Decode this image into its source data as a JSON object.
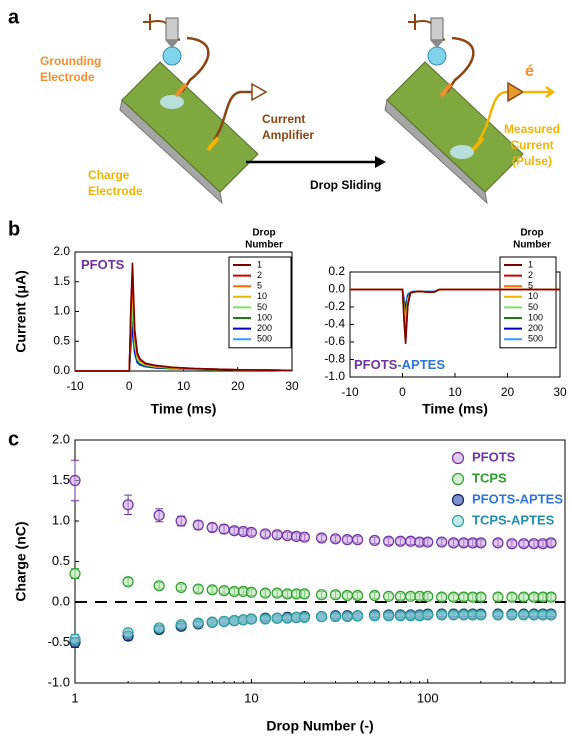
{
  "figure": {
    "panel_labels": [
      "a",
      "b",
      "c"
    ],
    "diagram": {
      "grounding": [
        "Grounding",
        "Electrode"
      ],
      "amplifier": [
        "Current",
        "Amplifier"
      ],
      "charge": [
        "Charge",
        "Electrode"
      ],
      "arrow": "Drop Sliding",
      "electron": "é",
      "measured": [
        "Measured",
        "Current",
        "(Pulse)"
      ]
    }
  },
  "chart_data": [
    {
      "type": "line",
      "title_parts": [
        {
          "text": "PFOTS",
          "color": "#7030a0"
        }
      ],
      "x_label": "Time (ms)",
      "y_label": "Current (μA)",
      "legend_title": [
        "Drop",
        "Number"
      ],
      "x": [
        -10,
        0,
        0.3,
        0.6,
        1,
        1.5,
        2,
        3,
        5,
        8,
        12,
        20,
        30
      ],
      "xlim": [
        -10,
        30
      ],
      "xticks": [
        -10,
        0,
        10,
        20,
        30
      ],
      "ylim": [
        0,
        2
      ],
      "yticks": [
        {
          "value": 0,
          "label": "0.0"
        },
        0.5,
        {
          "value": 1,
          "label": "1.0"
        },
        1.5,
        {
          "value": 2,
          "label": "2.0"
        }
      ],
      "series": [
        {
          "name": "1",
          "color": "#7b0000",
          "values": [
            0,
            0,
            1.1,
            1.82,
            0.7,
            0.3,
            0.2,
            0.13,
            0.09,
            0.06,
            0.04,
            0.02,
            0.01
          ]
        },
        {
          "name": "2",
          "color": "#d40000",
          "values": [
            0,
            0,
            1.0,
            1.7,
            0.65,
            0.28,
            0.19,
            0.12,
            0.09,
            0.06,
            0.04,
            0.02,
            0.01
          ]
        },
        {
          "name": "5",
          "color": "#ff6a00",
          "values": [
            0,
            0,
            0.95,
            1.55,
            0.6,
            0.26,
            0.18,
            0.12,
            0.08,
            0.06,
            0.04,
            0.02,
            0.01
          ]
        },
        {
          "name": "10",
          "color": "#e8b800",
          "values": [
            0,
            0,
            0.85,
            1.4,
            0.55,
            0.24,
            0.17,
            0.11,
            0.08,
            0.05,
            0.03,
            0.02,
            0.01
          ]
        },
        {
          "name": "50",
          "color": "#80e060",
          "values": [
            0,
            0,
            0.7,
            1.1,
            0.45,
            0.2,
            0.14,
            0.1,
            0.07,
            0.05,
            0.03,
            0.02,
            0.01
          ]
        },
        {
          "name": "100",
          "color": "#1a7a1a",
          "values": [
            0,
            0,
            0.6,
            0.95,
            0.4,
            0.18,
            0.13,
            0.09,
            0.06,
            0.04,
            0.03,
            0.02,
            0.01
          ]
        },
        {
          "name": "200",
          "color": "#0000c0",
          "values": [
            0,
            0,
            0.5,
            0.75,
            0.33,
            0.15,
            0.11,
            0.08,
            0.05,
            0.04,
            0.03,
            0.02,
            0.01
          ]
        },
        {
          "name": "500",
          "color": "#3399ff",
          "values": [
            0,
            0,
            0.4,
            0.62,
            0.28,
            0.13,
            0.1,
            0.07,
            0.05,
            0.04,
            0.03,
            0.02,
            0.01
          ]
        }
      ]
    },
    {
      "type": "line",
      "title_parts": [
        {
          "text": "PFOTS",
          "color": "#7030a0"
        },
        {
          "text": "-APTES",
          "color": "#2e75d6"
        }
      ],
      "x_label": "Time (ms)",
      "legend_title": [
        "Drop",
        "Number"
      ],
      "x": [
        -10,
        0,
        0.3,
        0.6,
        1,
        1.5,
        2,
        3,
        5,
        6,
        7,
        12,
        30
      ],
      "xlim": [
        -10,
        30
      ],
      "xticks": [
        -10,
        0,
        10,
        20,
        30
      ],
      "ylim": [
        -1,
        0.2
      ],
      "yticks": [
        0.2,
        {
          "value": 0,
          "label": "0.0"
        },
        -0.2,
        -0.4,
        -0.6,
        -0.8,
        {
          "value": -1,
          "label": "-1.0"
        }
      ],
      "series": [
        {
          "name": "1",
          "color": "#7b0000",
          "values": [
            0,
            0,
            -0.37,
            -0.62,
            -0.19,
            -0.04,
            -0.03,
            -0.02,
            -0.03,
            -0.03,
            0,
            0,
            0
          ]
        },
        {
          "name": "2",
          "color": "#d40000",
          "values": [
            0,
            0,
            -0.35,
            -0.58,
            -0.17,
            -0.04,
            -0.03,
            -0.02,
            -0.03,
            -0.03,
            0,
            0,
            0
          ]
        },
        {
          "name": "5",
          "color": "#ff6a00",
          "values": [
            0,
            0,
            -0.3,
            -0.5,
            -0.15,
            -0.04,
            -0.03,
            -0.02,
            -0.03,
            -0.03,
            0,
            0,
            0
          ]
        },
        {
          "name": "10",
          "color": "#e8b800",
          "values": [
            0,
            0,
            -0.27,
            -0.45,
            -0.14,
            -0.04,
            -0.03,
            -0.02,
            -0.03,
            -0.03,
            0,
            0,
            0
          ]
        },
        {
          "name": "50",
          "color": "#80e060",
          "values": [
            0,
            0,
            -0.21,
            -0.35,
            -0.11,
            -0.04,
            -0.03,
            -0.02,
            -0.03,
            -0.03,
            0,
            0,
            0
          ]
        },
        {
          "name": "100",
          "color": "#1a7a1a",
          "values": [
            0,
            0,
            -0.18,
            -0.3,
            -0.09,
            -0.04,
            -0.03,
            -0.02,
            -0.03,
            -0.03,
            0,
            0,
            0
          ]
        },
        {
          "name": "200",
          "color": "#0000c0",
          "values": [
            0,
            0,
            -0.13,
            -0.22,
            -0.07,
            -0.04,
            -0.03,
            -0.02,
            -0.03,
            -0.03,
            0,
            0,
            0
          ]
        },
        {
          "name": "500",
          "color": "#3399ff",
          "values": [
            0,
            0,
            -0.11,
            -0.18,
            -0.05,
            -0.03,
            -0.02,
            -0.02,
            -0.02,
            -0.02,
            0,
            0,
            0
          ]
        }
      ]
    },
    {
      "type": "scatter",
      "x_label": "Drop Number (-)",
      "y_label": "Charge (nC)",
      "xscale": "log",
      "reference_line": 0,
      "x": [
        1,
        2,
        3,
        4,
        5,
        6,
        7,
        8,
        9,
        10,
        12,
        14,
        16,
        18,
        20,
        25,
        30,
        35,
        40,
        50,
        60,
        70,
        80,
        90,
        100,
        120,
        140,
        160,
        180,
        200,
        250,
        300,
        350,
        400,
        450,
        500
      ],
      "xlim": [
        1,
        600
      ],
      "xticks": [
        1,
        10,
        100
      ],
      "ylim": [
        -1,
        2
      ],
      "yticks": [
        {
          "value": -1,
          "label": "-1.0"
        },
        -0.5,
        {
          "value": 0,
          "label": "0.0"
        },
        0.5,
        {
          "value": 1,
          "label": "1.0"
        },
        1.5,
        {
          "value": 2,
          "label": "2.0"
        }
      ],
      "series": [
        {
          "name": "PFOTS",
          "color": "#7030a0",
          "fill": "#c9a6e6",
          "label_color": "#7030a0",
          "values": [
            1.5,
            1.2,
            1.07,
            1.0,
            0.95,
            0.92,
            0.9,
            0.88,
            0.87,
            0.86,
            0.84,
            0.83,
            0.82,
            0.81,
            0.8,
            0.79,
            0.78,
            0.77,
            0.77,
            0.76,
            0.75,
            0.75,
            0.75,
            0.74,
            0.74,
            0.74,
            0.73,
            0.73,
            0.73,
            0.73,
            0.73,
            0.72,
            0.72,
            0.72,
            0.72,
            0.73
          ],
          "errors": [
            0.25,
            0.12,
            0.08,
            0.06,
            0.05,
            0.05,
            0.05,
            0.04,
            0.04,
            0.04,
            0.04,
            0.04,
            0.04,
            0.04,
            0.04,
            0.04,
            0.04,
            0.04,
            0.04,
            0.04,
            0.04,
            0.04,
            0.04,
            0.04,
            0.04,
            0.04,
            0.04,
            0.04,
            0.04,
            0.04,
            0.04,
            0.04,
            0.04,
            0.04,
            0.04,
            0.04
          ]
        },
        {
          "name": "TCPS",
          "color": "#2e9e2e",
          "fill": "#b9e6b0",
          "label_color": "#2e9e2e",
          "values": [
            0.35,
            0.25,
            0.2,
            0.18,
            0.16,
            0.15,
            0.14,
            0.13,
            0.13,
            0.12,
            0.11,
            0.11,
            0.1,
            0.1,
            0.1,
            0.09,
            0.09,
            0.08,
            0.08,
            0.08,
            0.07,
            0.07,
            0.07,
            0.07,
            0.07,
            0.06,
            0.06,
            0.06,
            0.06,
            0.06,
            0.06,
            0.06,
            0.06,
            0.06,
            0.06,
            0.06
          ],
          "errors": [
            0.06,
            0.05,
            0.04,
            0.04,
            0.04,
            0.04,
            0.04,
            0.04,
            0.04,
            0.04,
            0.04,
            0.04,
            0.04,
            0.04,
            0.04,
            0.04,
            0.04,
            0.04,
            0.04,
            0.04,
            0.04,
            0.04,
            0.04,
            0.04,
            0.04,
            0.04,
            0.04,
            0.04,
            0.04,
            0.04,
            0.04,
            0.04,
            0.04,
            0.04,
            0.04,
            0.04
          ]
        },
        {
          "name": "PFOTS-APTES",
          "color": "#0d1f5c",
          "fill": "#2a4aa8",
          "label_color": "#2e75d6",
          "values": [
            -0.5,
            -0.42,
            -0.34,
            -0.3,
            -0.27,
            -0.25,
            -0.24,
            -0.23,
            -0.22,
            -0.21,
            -0.2,
            -0.2,
            -0.19,
            -0.19,
            -0.18,
            -0.18,
            -0.17,
            -0.17,
            -0.17,
            -0.16,
            -0.16,
            -0.16,
            -0.16,
            -0.16,
            -0.15,
            -0.15,
            -0.15,
            -0.15,
            -0.15,
            -0.15,
            -0.15,
            -0.15,
            -0.15,
            -0.15,
            -0.15,
            -0.15
          ],
          "errors": [
            0.06,
            0.05,
            0.04,
            0.03,
            0.03,
            0.03,
            0.03,
            0.03,
            0.03,
            0.03,
            0.03,
            0.03,
            0.03,
            0.03,
            0.03,
            0.03,
            0.03,
            0.03,
            0.03,
            0.03,
            0.03,
            0.03,
            0.03,
            0.03,
            0.03,
            0.03,
            0.03,
            0.03,
            0.03,
            0.03,
            0.03,
            0.03,
            0.03,
            0.03,
            0.03,
            0.03
          ]
        },
        {
          "name": "TCPS-APTES",
          "color": "#2aa0a0",
          "fill": "#9adede",
          "label_color": "#1f8fb0",
          "values": [
            -0.46,
            -0.38,
            -0.32,
            -0.28,
            -0.26,
            -0.25,
            -0.24,
            -0.23,
            -0.22,
            -0.21,
            -0.21,
            -0.2,
            -0.2,
            -0.19,
            -0.19,
            -0.18,
            -0.18,
            -0.18,
            -0.17,
            -0.17,
            -0.17,
            -0.17,
            -0.17,
            -0.17,
            -0.16,
            -0.16,
            -0.16,
            -0.16,
            -0.16,
            -0.16,
            -0.16,
            -0.16,
            -0.16,
            -0.16,
            -0.16,
            -0.16
          ],
          "errors": [
            0.06,
            0.05,
            0.04,
            0.03,
            0.03,
            0.03,
            0.03,
            0.03,
            0.03,
            0.03,
            0.03,
            0.03,
            0.03,
            0.03,
            0.03,
            0.03,
            0.03,
            0.03,
            0.03,
            0.03,
            0.03,
            0.03,
            0.03,
            0.03,
            0.03,
            0.03,
            0.03,
            0.03,
            0.03,
            0.03,
            0.03,
            0.03,
            0.03,
            0.03,
            0.03,
            0.03
          ]
        }
      ]
    }
  ]
}
